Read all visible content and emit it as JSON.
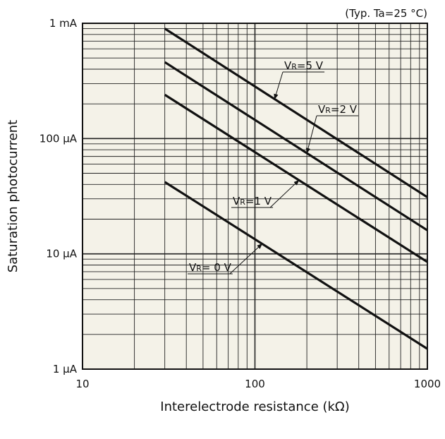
{
  "chart_data": {
    "type": "line",
    "title": "",
    "annotation": "(Typ. Ta=25 °C)",
    "xlabel": "Interelectrode resistance  (kΩ)",
    "ylabel": "Saturation photocurrent",
    "x_scale": "log",
    "y_scale": "log",
    "xlim": [
      10,
      1000
    ],
    "ylim_uA": [
      1,
      1000
    ],
    "grid": true,
    "x_ticks": [
      {
        "value": 10,
        "label": "10"
      },
      {
        "value": 100,
        "label": "100"
      },
      {
        "value": 1000,
        "label": "1000"
      }
    ],
    "y_ticks": [
      {
        "value": 1,
        "label": "1 μA"
      },
      {
        "value": 10,
        "label": "10 μA"
      },
      {
        "value": 100,
        "label": "100 μA"
      },
      {
        "value": 1000,
        "label": "1 mA"
      }
    ],
    "series": [
      {
        "label_main": "V",
        "label_sub": "R",
        "label_rest": "=5 V",
        "x": [
          30,
          1000
        ],
        "y_uA": [
          900,
          31
        ]
      },
      {
        "label_main": "V",
        "label_sub": "R",
        "label_rest": "=2 V",
        "x": [
          30,
          1000
        ],
        "y_uA": [
          460,
          16
        ]
      },
      {
        "label_main": "V",
        "label_sub": "R",
        "label_rest": "=1 V",
        "x": [
          30,
          1000
        ],
        "y_uA": [
          240,
          8.5
        ]
      },
      {
        "label_main": "V",
        "label_sub": "R",
        "label_rest": "= 0 V",
        "x": [
          30,
          1000
        ],
        "y_uA": [
          42,
          1.5
        ]
      }
    ]
  }
}
